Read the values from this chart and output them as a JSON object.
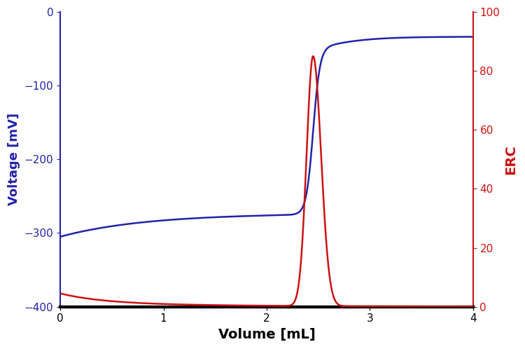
{
  "title": "",
  "xlabel": "Volume [mL]",
  "ylabel_left": "Voltage [mV]",
  "ylabel_right": "ERC",
  "xlim": [
    0,
    4
  ],
  "ylim_left": [
    -400,
    0
  ],
  "ylim_right": [
    0,
    100
  ],
  "yticks_left": [
    -400,
    -300,
    -200,
    -100,
    0
  ],
  "yticks_right": [
    0,
    20,
    40,
    60,
    80,
    100
  ],
  "xticks": [
    0,
    1,
    2,
    3,
    4
  ],
  "blue_color": "#2222aa",
  "red_color": "#cc1111",
  "equivalence_point": 2.45,
  "erc_peak": 85,
  "background_color": "#ffffff",
  "bottom_linewidth": 3.0
}
